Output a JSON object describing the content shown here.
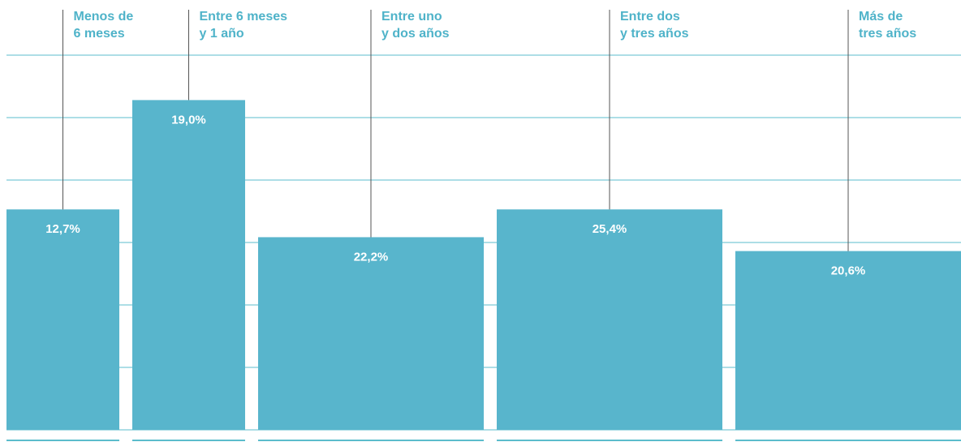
{
  "chart_data": {
    "type": "bar",
    "categories": [
      [
        "Menos de",
        "6 meses"
      ],
      [
        "Entre 6 meses",
        "y 1 año"
      ],
      [
        "Entre uno",
        "y dos años"
      ],
      [
        "Entre dos",
        "y tres años"
      ],
      [
        "Más de",
        "tres años"
      ]
    ],
    "values": [
      12.7,
      19.0,
      22.2,
      25.4,
      20.6
    ],
    "value_labels": [
      "12,7%",
      "19,0%",
      "22,2%",
      "25,4%",
      "20,6%"
    ],
    "color": "#58b5cc",
    "grid": true
  }
}
